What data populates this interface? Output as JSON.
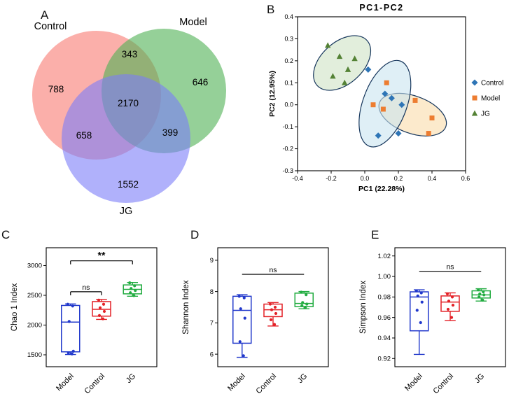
{
  "figure": {
    "panel_labels": {
      "a": "A",
      "b": "B",
      "c": "C",
      "d": "D",
      "e": "E"
    }
  },
  "chart_data": [
    {
      "panel": "A",
      "type": "venn",
      "sets": [
        {
          "name": "Control",
          "color": "#f87a72"
        },
        {
          "name": "Model",
          "color": "#4fb153"
        },
        {
          "name": "JG",
          "color": "#7b7df8"
        }
      ],
      "regions": {
        "control_only": 788,
        "model_only": 646,
        "jg_only": 1552,
        "control_model": 343,
        "control_jg": 658,
        "model_jg": 399,
        "control_model_jg": 2170
      }
    },
    {
      "panel": "B",
      "type": "scatter",
      "title": "PC1-PC2",
      "xlabel": "PC1 (22.28%)",
      "ylabel": "PC2 (12.95%)",
      "xlim": [
        -0.4,
        0.6
      ],
      "ylim": [
        -0.3,
        0.4
      ],
      "xticks": [
        -0.4,
        -0.2,
        0,
        0.2,
        0.4,
        0.6
      ],
      "yticks": [
        -0.3,
        -0.2,
        -0.1,
        0,
        0.1,
        0.2,
        0.3,
        0.4
      ],
      "tick_decimals": 1,
      "ellipse_stroke": "#16365c",
      "series": [
        {
          "name": "Control",
          "marker": "diamond",
          "color": "#2e75b6",
          "points": [
            [
              0.02,
              0.16
            ],
            [
              0.12,
              0.05
            ],
            [
              0.16,
              0.03
            ],
            [
              0.22,
              0.0
            ],
            [
              0.08,
              -0.14
            ],
            [
              0.2,
              -0.13
            ]
          ]
        },
        {
          "name": "Model",
          "marker": "square",
          "color": "#ed7d31",
          "points": [
            [
              0.13,
              0.1
            ],
            [
              0.05,
              0.0
            ],
            [
              0.11,
              -0.02
            ],
            [
              0.3,
              0.02
            ],
            [
              0.4,
              -0.06
            ],
            [
              0.38,
              -0.13
            ]
          ]
        },
        {
          "name": "JG",
          "marker": "triangle",
          "color": "#548235",
          "points": [
            [
              -0.22,
              0.27
            ],
            [
              -0.15,
              0.22
            ],
            [
              -0.19,
              0.13
            ],
            [
              -0.12,
              0.1
            ],
            [
              -0.06,
              0.21
            ],
            [
              -0.1,
              0.16
            ]
          ]
        }
      ],
      "ellipses": [
        {
          "group": "JG",
          "cx": -0.135,
          "cy": 0.19,
          "rx": 0.2,
          "ry": 0.095,
          "angle": -42,
          "fill": "#d8e8d0",
          "opacity": 0.75
        },
        {
          "group": "Model",
          "cx": 0.285,
          "cy": -0.045,
          "rx": 0.21,
          "ry": 0.085,
          "angle": 20,
          "fill": "#fbe3bb",
          "opacity": 0.75
        },
        {
          "group": "Control",
          "cx": 0.12,
          "cy": 0.005,
          "rx": 0.27,
          "ry": 0.1,
          "angle": -70,
          "fill": "#c9e4f0",
          "opacity": 0.6
        }
      ]
    },
    {
      "panel": "C",
      "type": "box",
      "ylabel": "Chao 1 Index",
      "categories": [
        "Model",
        "Control",
        "JG"
      ],
      "colors": [
        "#2138cb",
        "#e32127",
        "#22ac41"
      ],
      "ylim": [
        1300,
        3300
      ],
      "yticks": [
        1500,
        2000,
        2500,
        3000
      ],
      "tick_decimals": 0,
      "boxes": [
        {
          "category": "Model",
          "low": 1505,
          "q1": 1550,
          "median": 2050,
          "q3": 2330,
          "high": 2355,
          "points": [
            2350,
            2320,
            2060,
            1560,
            1530,
            1515
          ]
        },
        {
          "category": "Control",
          "low": 2095,
          "q1": 2150,
          "median": 2265,
          "q3": 2395,
          "high": 2430,
          "points": [
            2420,
            2350,
            2290,
            2230,
            2160,
            2105
          ]
        },
        {
          "category": "JG",
          "low": 2485,
          "q1": 2525,
          "median": 2600,
          "q3": 2675,
          "high": 2715,
          "points": [
            2710,
            2660,
            2615,
            2580,
            2545,
            2495
          ]
        }
      ],
      "annotations": [
        {
          "label": "ns",
          "from": 0,
          "to": 1,
          "y": 2560,
          "bracket": true
        },
        {
          "label": "**",
          "from": 0,
          "to": 2,
          "y": 3080,
          "bracket": true
        }
      ]
    },
    {
      "panel": "D",
      "type": "box",
      "ylabel": "Shannon Index",
      "categories": [
        "Model",
        "Control",
        "JG"
      ],
      "colors": [
        "#2138cb",
        "#e32127",
        "#22ac41"
      ],
      "ylim": [
        5.6,
        9.4
      ],
      "yticks": [
        6,
        7,
        8,
        9
      ],
      "tick_decimals": 0,
      "boxes": [
        {
          "category": "Model",
          "low": 5.9,
          "q1": 6.35,
          "median": 7.4,
          "q3": 7.85,
          "high": 7.9,
          "points": [
            7.85,
            7.8,
            7.45,
            7.15,
            6.4,
            5.95
          ]
        },
        {
          "category": "Control",
          "low": 6.9,
          "q1": 7.2,
          "median": 7.42,
          "q3": 7.6,
          "high": 7.65,
          "points": [
            7.6,
            7.5,
            7.42,
            7.3,
            7.1,
            6.95
          ]
        },
        {
          "category": "JG",
          "low": 7.45,
          "q1": 7.52,
          "median": 7.62,
          "q3": 7.95,
          "high": 8.0,
          "points": [
            7.98,
            7.9,
            7.65,
            7.6,
            7.55,
            7.5
          ]
        }
      ],
      "annotations": [
        {
          "label": "ns",
          "from": 0,
          "to": 2,
          "y": 8.55,
          "bracket": false
        }
      ]
    },
    {
      "panel": "E",
      "type": "box",
      "ylabel": "Simpson Index",
      "categories": [
        "Model",
        "Control",
        "JG"
      ],
      "colors": [
        "#2138cb",
        "#e32127",
        "#22ac41"
      ],
      "ylim": [
        0.912,
        1.028
      ],
      "yticks": [
        0.92,
        0.94,
        0.96,
        0.98,
        1.0,
        1.02
      ],
      "tick_decimals": 2,
      "boxes": [
        {
          "category": "Model",
          "low": 0.924,
          "q1": 0.947,
          "median": 0.98,
          "q3": 0.985,
          "high": 0.987,
          "points": [
            0.986,
            0.984,
            0.981,
            0.975,
            0.967,
            0.955
          ]
        },
        {
          "category": "Control",
          "low": 0.957,
          "q1": 0.966,
          "median": 0.975,
          "q3": 0.981,
          "high": 0.984,
          "points": [
            0.983,
            0.98,
            0.976,
            0.972,
            0.968,
            0.96
          ]
        },
        {
          "category": "JG",
          "low": 0.976,
          "q1": 0.979,
          "median": 0.982,
          "q3": 0.986,
          "high": 0.988,
          "points": [
            0.987,
            0.985,
            0.983,
            0.982,
            0.98,
            0.977
          ]
        }
      ],
      "annotations": [
        {
          "label": "ns",
          "from": 0,
          "to": 2,
          "y": 1.005,
          "bracket": false
        }
      ]
    }
  ]
}
